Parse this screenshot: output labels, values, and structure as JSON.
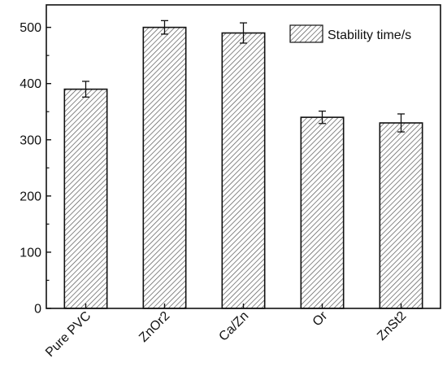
{
  "chart_data": {
    "type": "bar",
    "categories": [
      "Pure PVC",
      "ZnOr2",
      "Ca/Zn",
      "Or",
      "ZnSt2"
    ],
    "series": [
      {
        "name": "Stability time/s",
        "values": [
          390,
          500,
          490,
          340,
          330
        ],
        "errors": [
          14,
          12,
          18,
          11,
          16
        ]
      }
    ],
    "title": "",
    "xlabel": "",
    "ylabel": "",
    "ylim": [
      0,
      540
    ],
    "yticks": [
      0,
      100,
      200,
      300,
      400,
      500
    ],
    "ytick_labels": [
      "0",
      "100",
      "200",
      "300",
      "400",
      "500"
    ],
    "bar_fill": "hatched",
    "bar_color": "#ffffff",
    "hatch_color": "#555555",
    "edge_color": "#111111",
    "grid": false,
    "legend_position": "top-right",
    "x_tick_label_rotation": "45 degrees"
  }
}
